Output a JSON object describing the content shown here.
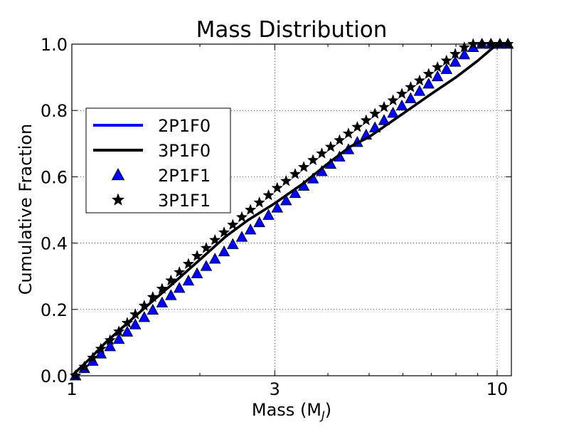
{
  "chart_data": {
    "type": "line",
    "title": "Mass Distribution",
    "xlabel_main": "Mass (M",
    "xlabel_sub": "J",
    "xlabel_close": ")",
    "ylabel": "Cumulative Fraction",
    "xscale": "log",
    "xlim": [
      1,
      10.8
    ],
    "ylim": [
      0,
      1.0
    ],
    "grid": true,
    "legend_position": "center-left",
    "x_ticks": [
      {
        "value": 1,
        "label": "1"
      },
      {
        "value": 3,
        "label": "3"
      },
      {
        "value": 10,
        "label": "10"
      }
    ],
    "y_ticks": [
      {
        "value": 0.0,
        "label": "0.0"
      },
      {
        "value": 0.2,
        "label": "0.2"
      },
      {
        "value": 0.4,
        "label": "0.4"
      },
      {
        "value": 0.6,
        "label": "0.6"
      },
      {
        "value": 0.8,
        "label": "0.8"
      },
      {
        "value": 1.0,
        "label": "1.0"
      }
    ],
    "series": [
      {
        "name": "2P1F0",
        "kind": "line",
        "color": "#0000ff",
        "x": [
          1.0,
          1.1,
          1.2,
          1.3,
          1.5,
          1.7,
          2.0,
          2.3,
          2.6,
          3.0,
          3.5,
          4.0,
          4.5,
          5.0,
          6.0,
          7.0,
          8.0,
          9.0,
          10.0,
          10.8
        ],
        "y": [
          0.0,
          0.05,
          0.1,
          0.14,
          0.21,
          0.27,
          0.35,
          0.42,
          0.47,
          0.52,
          0.58,
          0.64,
          0.69,
          0.72,
          0.79,
          0.85,
          0.9,
          0.95,
          1.0,
          1.0
        ]
      },
      {
        "name": "3P1F0",
        "kind": "line",
        "color": "#000000",
        "x": [
          1.0,
          1.1,
          1.2,
          1.3,
          1.5,
          1.7,
          2.0,
          2.3,
          2.6,
          3.0,
          3.5,
          4.0,
          4.5,
          5.0,
          6.0,
          7.0,
          8.0,
          9.0,
          10.0,
          10.8
        ],
        "y": [
          0.0,
          0.05,
          0.1,
          0.14,
          0.21,
          0.27,
          0.35,
          0.42,
          0.47,
          0.52,
          0.58,
          0.64,
          0.69,
          0.72,
          0.79,
          0.85,
          0.9,
          0.95,
          1.0,
          1.0
        ]
      },
      {
        "name": "2P1F1",
        "kind": "marker",
        "marker": "triangle",
        "color": "#0000ff",
        "x": [
          1.02,
          1.07,
          1.12,
          1.17,
          1.23,
          1.29,
          1.35,
          1.41,
          1.48,
          1.55,
          1.63,
          1.71,
          1.79,
          1.88,
          1.97,
          2.07,
          2.17,
          2.28,
          2.39,
          2.51,
          2.63,
          2.76,
          2.9,
          3.04,
          3.19,
          3.35,
          3.51,
          3.69,
          3.87,
          4.06,
          4.26,
          4.47,
          4.69,
          4.92,
          5.16,
          5.42,
          5.69,
          5.97,
          6.26,
          6.57,
          6.9,
          7.24,
          7.6,
          7.97,
          8.37,
          8.78,
          9.21,
          9.67,
          10.15,
          10.6
        ],
        "y": [
          0.0,
          0.022,
          0.044,
          0.066,
          0.088,
          0.11,
          0.132,
          0.154,
          0.176,
          0.198,
          0.22,
          0.242,
          0.264,
          0.286,
          0.308,
          0.33,
          0.352,
          0.374,
          0.396,
          0.418,
          0.44,
          0.462,
          0.484,
          0.506,
          0.528,
          0.55,
          0.572,
          0.594,
          0.616,
          0.638,
          0.66,
          0.682,
          0.704,
          0.726,
          0.748,
          0.77,
          0.792,
          0.814,
          0.836,
          0.858,
          0.88,
          0.902,
          0.924,
          0.946,
          0.968,
          0.99,
          1.0,
          1.0,
          1.0,
          1.0
        ]
      },
      {
        "name": "3P1F1",
        "kind": "marker",
        "marker": "star",
        "color": "#000000",
        "x": [
          1.02,
          1.07,
          1.12,
          1.17,
          1.23,
          1.29,
          1.35,
          1.41,
          1.48,
          1.55,
          1.63,
          1.71,
          1.79,
          1.88,
          1.97,
          2.07,
          2.17,
          2.28,
          2.39,
          2.51,
          2.63,
          2.76,
          2.9,
          3.04,
          3.19,
          3.35,
          3.51,
          3.69,
          3.87,
          4.06,
          4.26,
          4.47,
          4.69,
          4.92,
          5.16,
          5.42,
          5.69,
          5.97,
          6.26,
          6.57,
          6.9,
          7.24,
          7.6,
          7.97,
          8.37,
          8.78,
          9.21,
          9.67,
          10.15,
          10.6
        ],
        "y": [
          0.0,
          0.027,
          0.054,
          0.081,
          0.107,
          0.133,
          0.159,
          0.185,
          0.211,
          0.237,
          0.262,
          0.287,
          0.312,
          0.337,
          0.361,
          0.385,
          0.409,
          0.432,
          0.455,
          0.478,
          0.5,
          0.522,
          0.544,
          0.566,
          0.587,
          0.608,
          0.629,
          0.65,
          0.67,
          0.69,
          0.71,
          0.73,
          0.75,
          0.77,
          0.79,
          0.81,
          0.83,
          0.85,
          0.87,
          0.89,
          0.91,
          0.93,
          0.95,
          0.97,
          0.99,
          1.0,
          1.0,
          1.0,
          1.0,
          1.0
        ]
      }
    ]
  }
}
